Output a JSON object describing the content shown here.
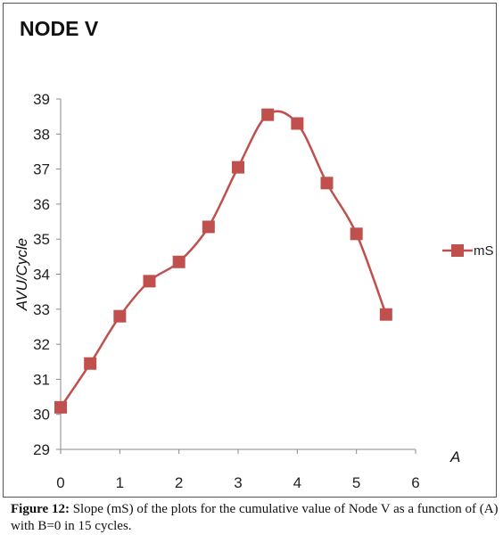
{
  "chart_data": {
    "type": "line",
    "title": "NODE V",
    "xlabel": "A",
    "ylabel": "AVU/Cycle",
    "xlim": [
      0,
      6
    ],
    "ylim": [
      29,
      39
    ],
    "x_ticks": [
      "0",
      "1",
      "2",
      "3",
      "4",
      "5",
      "6"
    ],
    "y_ticks": [
      "29",
      "30",
      "31",
      "32",
      "33",
      "34",
      "35",
      "36",
      "37",
      "38",
      "39"
    ],
    "grid": false,
    "legend_position": "right",
    "series": [
      {
        "name": "mS",
        "color": "#c0504d",
        "marker": "square",
        "x": [
          0,
          0.5,
          1,
          1.5,
          2,
          2.5,
          3,
          3.5,
          4,
          4.5,
          5,
          5.5
        ],
        "y": [
          30.2,
          31.45,
          32.8,
          33.8,
          34.35,
          35.35,
          37.05,
          38.55,
          38.3,
          36.6,
          35.15,
          32.85
        ]
      }
    ]
  },
  "caption": {
    "label": "Figure 12:",
    "text": " Slope (mS) of the plots for the cumulative value of Node V as a function of (A) with B=0 in 15 cycles."
  }
}
